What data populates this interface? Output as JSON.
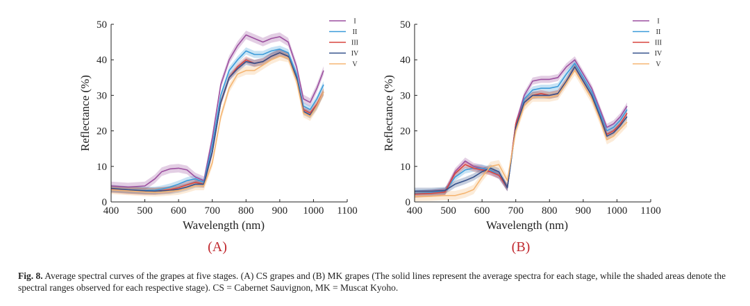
{
  "colors": {
    "I": "#9b4f9f",
    "II": "#3a9ad9",
    "III": "#d9453f",
    "IV": "#34508a",
    "V": "#f5b673"
  },
  "caption": {
    "fig_number": "Fig. 8.",
    "text": "Average spectral curves of the grapes at five stages. (A) CS grapes and (B) MK grapes (The solid lines represent the average spectra for each stage, while the shaded areas denote the spectral ranges observed for each respective stage). CS = Cabernet Sauvignon, MK = Muscat Kyoho."
  },
  "chart_data": [
    {
      "type": "line",
      "panel_label": "(A)",
      "xlabel": "Wavelength (nm)",
      "ylabel": "Reflectance (%)",
      "xlim": [
        400,
        1100
      ],
      "ylim": [
        0,
        50
      ],
      "xticks": [
        400,
        500,
        600,
        700,
        800,
        900,
        1000,
        1100
      ],
      "yticks": [
        0,
        10,
        20,
        30,
        40,
        50
      ],
      "legend_position": "top-right",
      "x": [
        400,
        450,
        500,
        530,
        550,
        575,
        600,
        625,
        650,
        675,
        700,
        725,
        750,
        775,
        800,
        825,
        850,
        875,
        900,
        925,
        950,
        970,
        990,
        1010,
        1030
      ],
      "series": [
        {
          "name": "I",
          "values": [
            4.5,
            4.2,
            4.5,
            6.5,
            8.5,
            9.3,
            9.5,
            9.0,
            7.0,
            6.0,
            18,
            33,
            40,
            44,
            47,
            46,
            45,
            46,
            46.5,
            45,
            38,
            29,
            28,
            32,
            37
          ],
          "band": 1.2
        },
        {
          "name": "II",
          "values": [
            3.6,
            3.4,
            3.2,
            3.3,
            3.6,
            4.2,
            5.0,
            6.0,
            6.5,
            5.5,
            16,
            30,
            37,
            40,
            42.5,
            41.5,
            41.5,
            42.5,
            43,
            42,
            36,
            27,
            26,
            29,
            33
          ],
          "band": 1.0
        },
        {
          "name": "III",
          "values": [
            3.6,
            3.2,
            3.0,
            3.0,
            3.2,
            3.5,
            4.0,
            4.8,
            5.5,
            5.0,
            14,
            28,
            35,
            38,
            40,
            39,
            39.5,
            41,
            42,
            41,
            35,
            26,
            25,
            27.5,
            31
          ],
          "band": 1.0
        },
        {
          "name": "IV",
          "values": [
            3.8,
            3.4,
            3.1,
            3.0,
            3.1,
            3.2,
            3.6,
            4.2,
            5.0,
            5.0,
            14,
            28,
            35,
            37.5,
            39.5,
            39,
            39.5,
            41,
            42,
            41,
            35,
            25.5,
            24.5,
            27,
            31
          ],
          "band": 1.0
        },
        {
          "name": "V",
          "values": [
            3.4,
            3.1,
            2.8,
            2.7,
            2.8,
            3.0,
            3.2,
            3.8,
            4.5,
            4.5,
            11,
            24,
            32,
            36,
            37,
            37,
            38.5,
            40,
            41,
            40.5,
            34,
            25,
            24,
            27,
            31
          ],
          "band": 1.2
        }
      ]
    },
    {
      "type": "line",
      "panel_label": "(B)",
      "xlabel": "Wavelength (nm)",
      "ylabel": "Reflectance (%)",
      "xlim": [
        400,
        1100
      ],
      "ylim": [
        0,
        50
      ],
      "xticks": [
        400,
        500,
        600,
        700,
        800,
        900,
        1000,
        1100
      ],
      "yticks": [
        0,
        10,
        20,
        30,
        40,
        50
      ],
      "legend_position": "top-right",
      "x": [
        400,
        450,
        490,
        520,
        550,
        575,
        600,
        625,
        650,
        675,
        700,
        725,
        750,
        775,
        800,
        825,
        850,
        875,
        900,
        925,
        950,
        970,
        990,
        1010,
        1030
      ],
      "series": [
        {
          "name": "I",
          "values": [
            2.2,
            2.5,
            2.8,
            8.5,
            11.5,
            10.0,
            9.5,
            8.5,
            7.5,
            4.0,
            22,
            30,
            34,
            34.5,
            34.5,
            35,
            38,
            40,
            36,
            32,
            26,
            21,
            22,
            24,
            27
          ],
          "band": 1.0
        },
        {
          "name": "II",
          "values": [
            2.4,
            2.6,
            3.0,
            7.0,
            9.0,
            9.5,
            9.5,
            9.0,
            7.5,
            4.0,
            21,
            29,
            31.5,
            32,
            32,
            32.5,
            36,
            39,
            35,
            31,
            25,
            20,
            21,
            23,
            26
          ],
          "band": 1.0
        },
        {
          "name": "III",
          "values": [
            2.2,
            2.4,
            2.8,
            8.0,
            10.5,
            9.5,
            9.0,
            8.5,
            7.5,
            4.0,
            22,
            28,
            30,
            30.5,
            30,
            30.5,
            34,
            38,
            34,
            30,
            24,
            19,
            20,
            22,
            25
          ],
          "band": 1.0
        },
        {
          "name": "IV",
          "values": [
            3.0,
            3.0,
            3.2,
            5.0,
            6.0,
            7.0,
            8.5,
            9.5,
            8.5,
            4.0,
            21,
            28,
            30,
            30,
            30,
            30.5,
            34,
            38,
            34,
            30,
            24,
            18.5,
            19.5,
            21.5,
            24
          ],
          "band": 1.0
        },
        {
          "name": "V",
          "values": [
            1.5,
            1.6,
            1.8,
            1.8,
            2.5,
            3.5,
            7.0,
            10.0,
            10.5,
            6.0,
            20,
            27,
            29.5,
            29.5,
            29.5,
            30,
            33.5,
            37,
            33,
            29,
            23,
            17.5,
            18.5,
            20.5,
            22.5
          ],
          "band": 1.3
        }
      ]
    }
  ]
}
